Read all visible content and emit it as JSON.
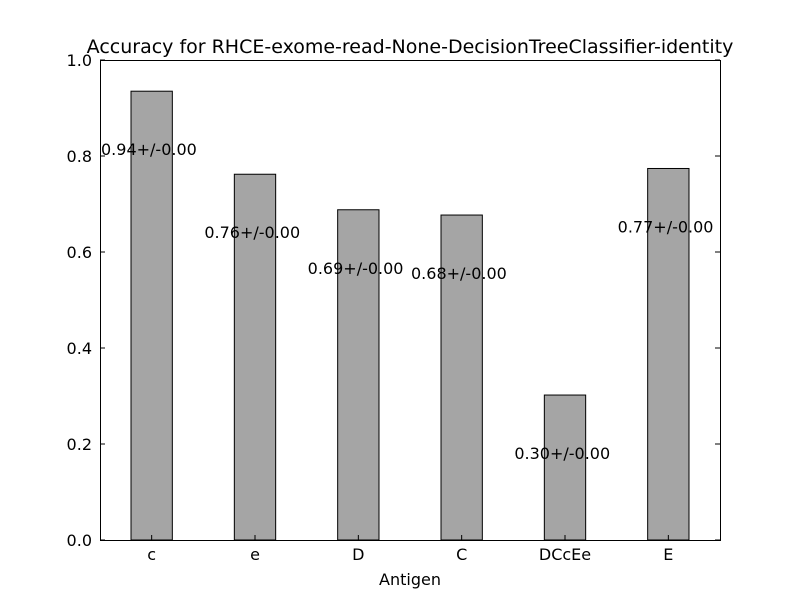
{
  "chart_data": {
    "type": "bar",
    "title": "Accuracy for RHCE-exome-read-None-DecisionTreeClassifier-identity",
    "xlabel": "Antigen",
    "ylabel": "",
    "categories": [
      "c",
      "e",
      "D",
      "C",
      "DCcEe",
      "E"
    ],
    "values": [
      0.935,
      0.762,
      0.688,
      0.677,
      0.302,
      0.774
    ],
    "data_labels": [
      "0.94+/-0.00",
      "0.76+/-0.00",
      "0.69+/-0.00",
      "0.68+/-0.00",
      "0.30+/-0.00",
      "0.77+/-0.00"
    ],
    "ylim": [
      0,
      1.0
    ],
    "yticks": [
      0.0,
      0.2,
      0.4,
      0.6,
      0.8,
      1.0
    ],
    "ytick_labels": [
      "0.0",
      "0.2",
      "0.4",
      "0.6",
      "0.8",
      "1.0"
    ],
    "bar_color": "#a5a5a5",
    "grid": false
  }
}
